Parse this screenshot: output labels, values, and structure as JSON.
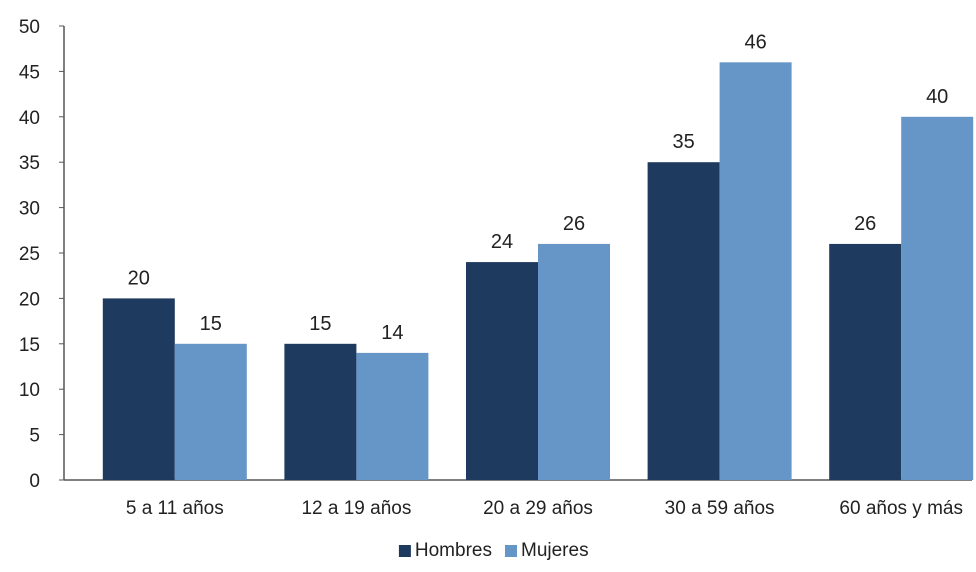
{
  "chart_data": {
    "type": "bar",
    "categories": [
      "5 a 11 años",
      "12 a 19 años",
      "20 a 29 años",
      "30 a 59 años",
      "60 años y más"
    ],
    "series": [
      {
        "name": "Hombres",
        "values": [
          20,
          15,
          24,
          35,
          26
        ],
        "color": "#1f3a5f"
      },
      {
        "name": "Mujeres",
        "values": [
          15,
          14,
          26,
          46,
          40
        ],
        "color": "#6695c8"
      }
    ],
    "ylim": [
      0,
      50
    ],
    "yticks": [
      0,
      5,
      10,
      15,
      20,
      25,
      30,
      35,
      40,
      45,
      50
    ],
    "data_labels": true,
    "grid": false,
    "legend": "bottom-center",
    "axis_color": "#555555"
  }
}
